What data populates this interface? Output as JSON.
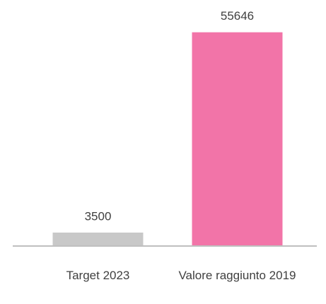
{
  "chart_data": {
    "type": "bar",
    "categories": [
      "Target 2023",
      "Valore raggiunto 2019"
    ],
    "values": [
      3500,
      55646
    ],
    "colors": [
      "#c8c8c8",
      "#f274a8"
    ],
    "ylim": [
      0,
      60000
    ]
  }
}
